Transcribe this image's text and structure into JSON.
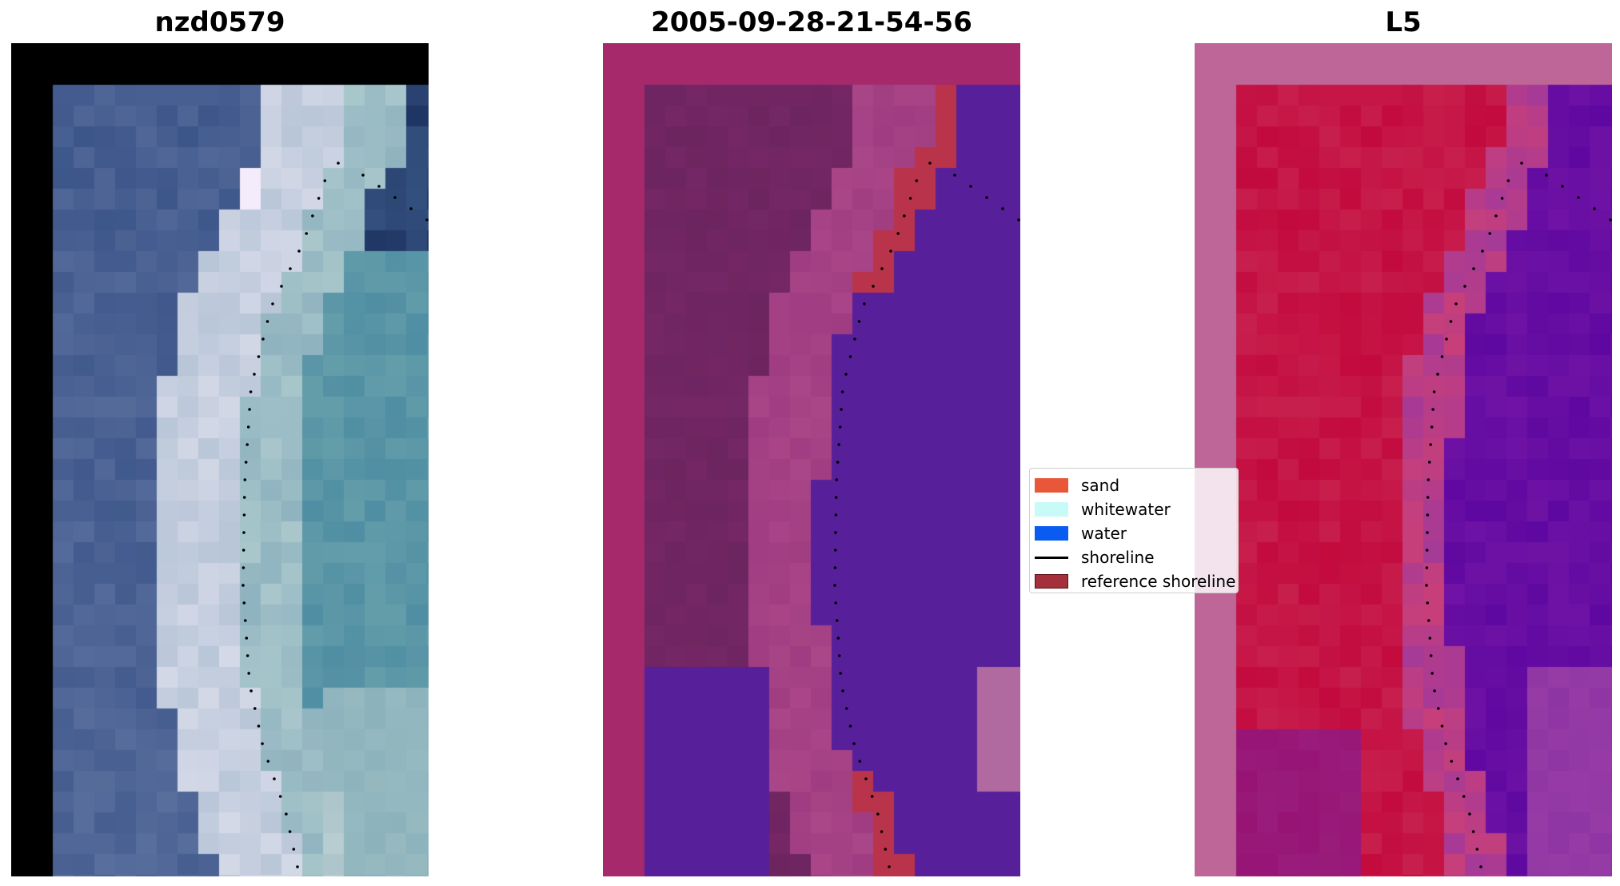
{
  "panels": [
    {
      "title": "nzd0579",
      "scheme": "rgb"
    },
    {
      "title": "2005-09-28-21-54-56",
      "scheme": "classified"
    },
    {
      "title": "L5",
      "scheme": "index"
    }
  ],
  "legend": {
    "items": [
      {
        "label": "sand",
        "color": "#e8573a",
        "kind": "patch"
      },
      {
        "label": "whitewater",
        "color": "#c8fbf8",
        "kind": "patch"
      },
      {
        "label": "water",
        "color": "#0a5cf0",
        "kind": "patch"
      },
      {
        "label": "shoreline",
        "color": "#000000",
        "kind": "line"
      },
      {
        "label": "reference shoreline",
        "color": "#a3303a",
        "kind": "patch"
      }
    ]
  },
  "colors": {
    "nodata_black": "#000000",
    "classified_border": "#a5296b",
    "classified_land": "#6d2560",
    "classified_water": "#57209a",
    "classified_sand": "#b9344a",
    "index_border": "#bd6697",
    "index_land": "#c30a3e",
    "index_water": "#5f08a1"
  }
}
